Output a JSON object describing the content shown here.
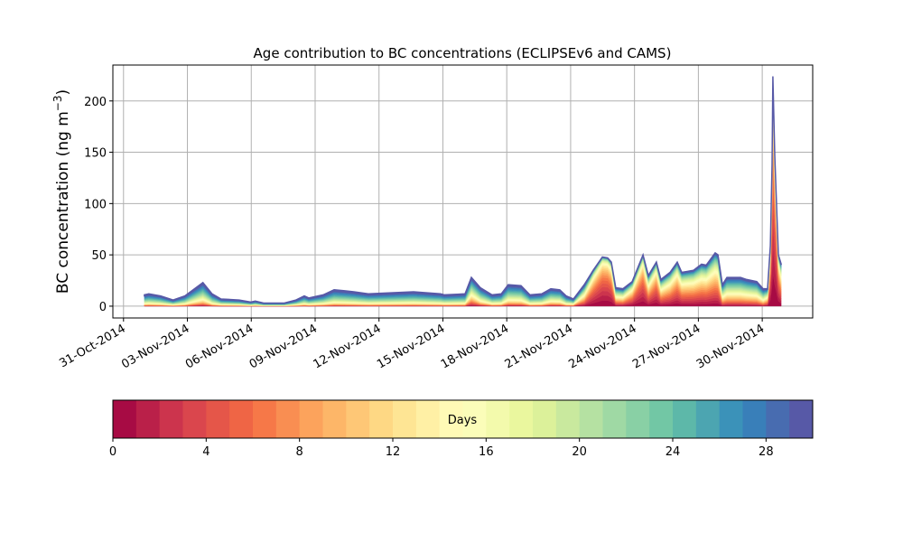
{
  "chart_data": {
    "type": "area",
    "stacked": true,
    "title": "Age contribution to BC concentrations (ECLIPSEv6 and CAMS)",
    "ylabel_main": "BC concentration (ng m",
    "ylabel_sup": "−3",
    "ylabel_end": ")",
    "xlabel": "",
    "x_unit": "days since 31-Oct-2014",
    "xlim": [
      -0.5,
      32.37
    ],
    "ylim": [
      -11.5,
      235
    ],
    "grid": true,
    "xticks": [
      0,
      3,
      6,
      9,
      12,
      15,
      18,
      21,
      24,
      27,
      30
    ],
    "xtick_labels": [
      "31-Oct-2014",
      "03-Nov-2014",
      "06-Nov-2014",
      "09-Nov-2014",
      "12-Nov-2014",
      "15-Nov-2014",
      "18-Nov-2014",
      "21-Nov-2014",
      "24-Nov-2014",
      "27-Nov-2014",
      "30-Nov-2014"
    ],
    "yticks": [
      0,
      50,
      100,
      150,
      200
    ],
    "ytick_labels": [
      "0",
      "50",
      "100",
      "150",
      "200"
    ],
    "x": [
      0.98,
      1.19,
      1.74,
      2.33,
      2.88,
      3.73,
      4.16,
      4.58,
      5.43,
      5.98,
      6.19,
      6.58,
      7.55,
      8.1,
      8.49,
      8.7,
      9.38,
      9.89,
      10.39,
      10.82,
      11.5,
      13.62,
      14.89,
      15.06,
      16.04,
      16.34,
      16.76,
      17.31,
      17.74,
      18.07,
      18.67,
      19.09,
      19.64,
      20.07,
      20.49,
      20.79,
      21.13,
      21.64,
      22.06,
      22.49,
      22.74,
      22.91,
      23.12,
      23.46,
      23.89,
      24.4,
      24.65,
      25.03,
      25.24,
      25.67,
      26.01,
      26.22,
      26.77,
      27.15,
      27.37,
      27.79,
      27.92,
      28.13,
      28.34,
      28.98,
      29.27,
      29.74,
      30.04,
      30.25,
      30.38,
      30.46,
      30.5,
      30.59,
      30.76,
      30.89
    ],
    "total": [
      11,
      12,
      10,
      6,
      10,
      23,
      12,
      7,
      6,
      4,
      5,
      3,
      3,
      6,
      10,
      8,
      11,
      16,
      15,
      14,
      12,
      14,
      12,
      11,
      12,
      28,
      18,
      11,
      12,
      21,
      20,
      11,
      12,
      17,
      16,
      10,
      7,
      21,
      35,
      48,
      47,
      43,
      18,
      17,
      24,
      50,
      30,
      43,
      26,
      33,
      43,
      33,
      35,
      41,
      40,
      52,
      50,
      21,
      28,
      28,
      26,
      24,
      17,
      17,
      59,
      138,
      224,
      147,
      50,
      41
    ],
    "age_weight_exponent": [
      0.08,
      0.08,
      0.08,
      0.08,
      0.08,
      0.06,
      0.08,
      0.08,
      0.08,
      0.08,
      0.08,
      0.08,
      0.08,
      0.08,
      0.08,
      0.08,
      0.08,
      0.08,
      0.08,
      0.08,
      0.08,
      0.08,
      0.08,
      0.08,
      0.08,
      0.03,
      0.06,
      0.08,
      0.08,
      0.06,
      0.06,
      0.08,
      0.08,
      0.06,
      0.06,
      0.08,
      0.06,
      0.0,
      -0.08,
      -0.12,
      -0.12,
      -0.1,
      0.0,
      0.0,
      -0.04,
      -0.1,
      -0.04,
      -0.08,
      -0.03,
      -0.04,
      -0.06,
      -0.04,
      -0.04,
      -0.04,
      -0.04,
      -0.04,
      -0.04,
      0.02,
      0.02,
      0.02,
      0.02,
      0.02,
      0.04,
      0.0,
      -0.1,
      -0.15,
      -0.15,
      -0.15,
      -0.1,
      -0.05
    ],
    "colorbar": {
      "label": "Days",
      "range": [
        0,
        30
      ],
      "bins": 30,
      "ticks": [
        0,
        4,
        8,
        12,
        16,
        20,
        24,
        28
      ],
      "tick_labels": [
        "0",
        "4",
        "8",
        "12",
        "16",
        "20",
        "24",
        "28"
      ],
      "colormap": "Spectral",
      "colormap_anchors": [
        "#9e0142",
        "#d53e4f",
        "#f46d43",
        "#fdae61",
        "#fee08b",
        "#ffffbf",
        "#e6f598",
        "#abdda4",
        "#66c2a5",
        "#3288bd",
        "#5e4fa2"
      ]
    }
  }
}
